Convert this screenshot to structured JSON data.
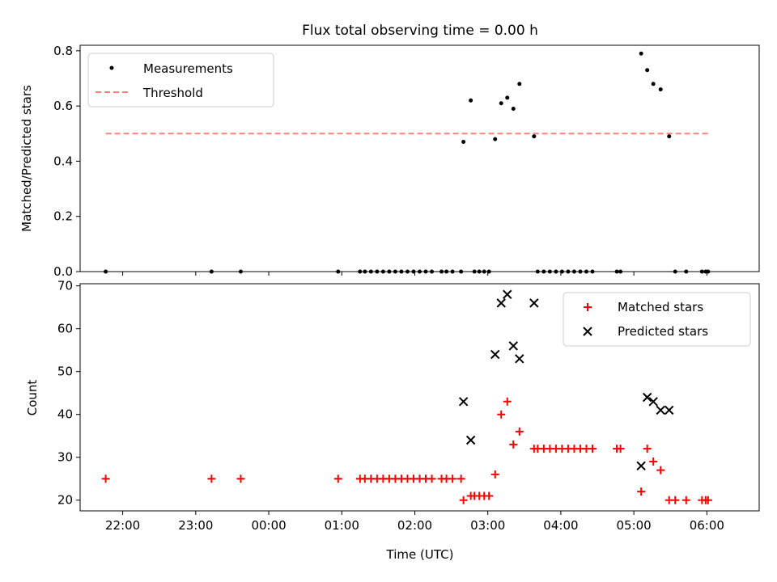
{
  "figure": {
    "title": "Flux total observing time = 0.00 h",
    "xlabel": "Time (UTC)"
  },
  "colors": {
    "measurements": "#000000",
    "threshold": "#ff7f7f",
    "matched": "#ff0000",
    "predicted": "#000000"
  },
  "chart_data": [
    {
      "type": "scatter",
      "panel": "top",
      "ylabel": "Matched/Predicted stars",
      "xlim": [
        "21:25",
        "06:43"
      ],
      "ylim": [
        0,
        0.82
      ],
      "x_ticks": [
        "22:00",
        "23:00",
        "00:00",
        "01:00",
        "02:00",
        "03:00",
        "04:00",
        "05:00",
        "06:00"
      ],
      "y_ticks": [
        "0.0",
        "0.2",
        "0.4",
        "0.6",
        "0.8"
      ],
      "grid": false,
      "legend_position": "top-left",
      "series": [
        {
          "name": "Measurements",
          "kind": "scatter-dot",
          "points": [
            [
              "21:46",
              0
            ],
            [
              "23:13",
              0
            ],
            [
              "23:37",
              0
            ],
            [
              "00:57",
              0
            ],
            [
              "01:15",
              0
            ],
            [
              "01:19",
              0
            ],
            [
              "01:24",
              0
            ],
            [
              "01:29",
              0
            ],
            [
              "01:34",
              0
            ],
            [
              "01:39",
              0
            ],
            [
              "01:44",
              0
            ],
            [
              "01:49",
              0
            ],
            [
              "01:54",
              0
            ],
            [
              "01:59",
              0
            ],
            [
              "02:04",
              0
            ],
            [
              "02:09",
              0
            ],
            [
              "02:14",
              0
            ],
            [
              "02:22",
              0
            ],
            [
              "02:26",
              0
            ],
            [
              "02:31",
              0
            ],
            [
              "02:38",
              0
            ],
            [
              "02:40",
              0.47
            ],
            [
              "02:46",
              0.62
            ],
            [
              "02:49",
              0
            ],
            [
              "02:53",
              0
            ],
            [
              "02:57",
              0
            ],
            [
              "03:01",
              0
            ],
            [
              "03:06",
              0.48
            ],
            [
              "03:11",
              0.61
            ],
            [
              "03:16",
              0.63
            ],
            [
              "03:21",
              0.59
            ],
            [
              "03:26",
              0.68
            ],
            [
              "03:38",
              0.49
            ],
            [
              "03:41",
              0
            ],
            [
              "03:46",
              0
            ],
            [
              "03:51",
              0
            ],
            [
              "03:56",
              0
            ],
            [
              "04:01",
              0
            ],
            [
              "04:06",
              0
            ],
            [
              "04:11",
              0
            ],
            [
              "04:16",
              0
            ],
            [
              "04:21",
              0
            ],
            [
              "04:26",
              0
            ],
            [
              "04:46",
              0
            ],
            [
              "04:49",
              0
            ],
            [
              "05:06",
              0.79
            ],
            [
              "05:11",
              0.73
            ],
            [
              "05:16",
              0.68
            ],
            [
              "05:22",
              0.66
            ],
            [
              "05:29",
              0.49
            ],
            [
              "05:34",
              0
            ],
            [
              "05:43",
              0
            ],
            [
              "05:56",
              0
            ],
            [
              "05:59",
              0
            ],
            [
              "06:01",
              0
            ]
          ]
        },
        {
          "name": "Threshold",
          "kind": "dashed-line",
          "points": [
            [
              "21:46",
              0.5
            ],
            [
              "06:01",
              0.5
            ]
          ]
        }
      ]
    },
    {
      "type": "scatter",
      "panel": "bottom",
      "ylabel": "Count",
      "xlim": [
        "21:25",
        "06:43"
      ],
      "ylim": [
        17.5,
        70.5
      ],
      "x_ticks": [
        "22:00",
        "23:00",
        "00:00",
        "01:00",
        "02:00",
        "03:00",
        "04:00",
        "05:00",
        "06:00"
      ],
      "y_ticks": [
        "20",
        "30",
        "40",
        "50",
        "60",
        "70"
      ],
      "grid": false,
      "legend_position": "top-right",
      "series": [
        {
          "name": "Matched stars",
          "kind": "plus",
          "points": [
            [
              "21:46",
              25
            ],
            [
              "23:13",
              25
            ],
            [
              "23:37",
              25
            ],
            [
              "00:57",
              25
            ],
            [
              "01:15",
              25
            ],
            [
              "01:19",
              25
            ],
            [
              "01:24",
              25
            ],
            [
              "01:29",
              25
            ],
            [
              "01:34",
              25
            ],
            [
              "01:39",
              25
            ],
            [
              "01:44",
              25
            ],
            [
              "01:49",
              25
            ],
            [
              "01:54",
              25
            ],
            [
              "01:59",
              25
            ],
            [
              "02:04",
              25
            ],
            [
              "02:09",
              25
            ],
            [
              "02:14",
              25
            ],
            [
              "02:22",
              25
            ],
            [
              "02:26",
              25
            ],
            [
              "02:31",
              25
            ],
            [
              "02:38",
              25
            ],
            [
              "02:40",
              20
            ],
            [
              "02:46",
              21
            ],
            [
              "02:49",
              21
            ],
            [
              "02:53",
              21
            ],
            [
              "02:57",
              21
            ],
            [
              "03:01",
              21
            ],
            [
              "03:06",
              26
            ],
            [
              "03:11",
              40
            ],
            [
              "03:16",
              43
            ],
            [
              "03:21",
              33
            ],
            [
              "03:26",
              36
            ],
            [
              "03:38",
              32
            ],
            [
              "03:41",
              32
            ],
            [
              "03:46",
              32
            ],
            [
              "03:51",
              32
            ],
            [
              "03:56",
              32
            ],
            [
              "04:01",
              32
            ],
            [
              "04:06",
              32
            ],
            [
              "04:11",
              32
            ],
            [
              "04:16",
              32
            ],
            [
              "04:21",
              32
            ],
            [
              "04:26",
              32
            ],
            [
              "04:46",
              32
            ],
            [
              "04:49",
              32
            ],
            [
              "05:06",
              22
            ],
            [
              "05:11",
              32
            ],
            [
              "05:16",
              29
            ],
            [
              "05:22",
              27
            ],
            [
              "05:29",
              20
            ],
            [
              "05:34",
              20
            ],
            [
              "05:43",
              20
            ],
            [
              "05:56",
              20
            ],
            [
              "05:59",
              20
            ],
            [
              "06:01",
              20
            ]
          ]
        },
        {
          "name": "Predicted stars",
          "kind": "x",
          "points": [
            [
              "02:40",
              43
            ],
            [
              "02:46",
              34
            ],
            [
              "03:06",
              54
            ],
            [
              "03:11",
              66
            ],
            [
              "03:16",
              68
            ],
            [
              "03:21",
              56
            ],
            [
              "03:26",
              53
            ],
            [
              "03:38",
              66
            ],
            [
              "05:06",
              28
            ],
            [
              "05:11",
              44
            ],
            [
              "05:16",
              43
            ],
            [
              "05:22",
              41
            ],
            [
              "05:29",
              41
            ]
          ]
        }
      ]
    }
  ]
}
